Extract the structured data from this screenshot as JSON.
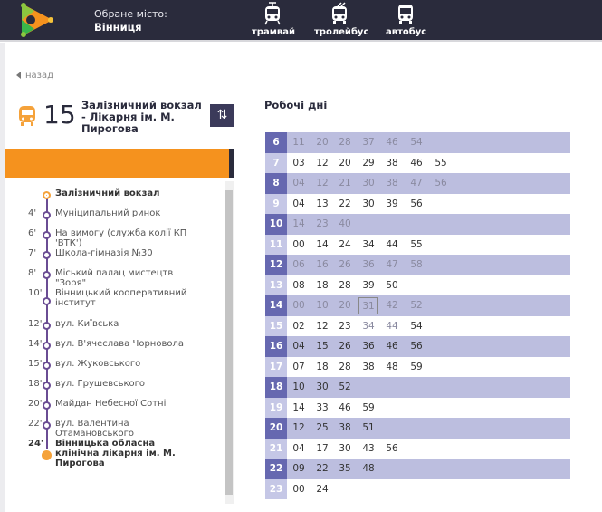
{
  "header": {
    "city_label": "Обране місто:",
    "city": "Вінниця",
    "modes": [
      {
        "label": "трамвай",
        "icon": "tram-icon"
      },
      {
        "label": "тролейбус",
        "icon": "trolleybus-icon"
      },
      {
        "label": "автобус",
        "icon": "bus-icon"
      }
    ],
    "colors": {
      "background": "#2a2b3c",
      "accent": "#f5921e",
      "purple": "#6668b0"
    }
  },
  "route": {
    "back_label": "назад",
    "number": "15",
    "name": "Залізничний вокзал - Лікарня ім. М. Пирогова",
    "type_icon": "bus-icon",
    "swap_icon": "swap-direction-icon"
  },
  "stops": [
    {
      "time": "",
      "name": "Залізничний вокзал",
      "kind": "start"
    },
    {
      "time": "4'",
      "name": "Муніципальний ринок"
    },
    {
      "time": "6'",
      "name": "На вимогу (служба колії КП 'ВТК')"
    },
    {
      "time": "7'",
      "name": "Школа-гімназія №30"
    },
    {
      "time": "8'",
      "name": "Міський палац мистецтв \"Зоря\""
    },
    {
      "time": "10'",
      "name": "Вінницький кооперативний інститут"
    },
    {
      "time": "12'",
      "name": "вул. Київська"
    },
    {
      "time": "14'",
      "name": "вул. В'ячеслава Чорновола"
    },
    {
      "time": "15'",
      "name": "вул. Жуковського"
    },
    {
      "time": "18'",
      "name": "вул. Грушевського"
    },
    {
      "time": "20'",
      "name": "Майдан Небесної Сотні"
    },
    {
      "time": "22'",
      "name": "вул. Валентина Отамановського"
    },
    {
      "time": "24'",
      "name": "Вінницька обласна клінічна лікарня ім. М. Пирогова",
      "kind": "end"
    }
  ],
  "timetable": {
    "title": "Робочі дні",
    "rows": [
      {
        "hour": "6",
        "minutes": [
          "11",
          "20",
          "28",
          "37",
          "46",
          "54"
        ],
        "muted": [
          0,
          1,
          2,
          3,
          4,
          5
        ]
      },
      {
        "hour": "7",
        "minutes": [
          "03",
          "12",
          "20",
          "29",
          "38",
          "46",
          "55"
        ],
        "muted": []
      },
      {
        "hour": "8",
        "minutes": [
          "04",
          "12",
          "21",
          "30",
          "38",
          "47",
          "56"
        ],
        "muted": [
          0,
          1,
          2,
          3,
          4,
          5,
          6
        ]
      },
      {
        "hour": "9",
        "minutes": [
          "04",
          "13",
          "22",
          "30",
          "39",
          "56"
        ],
        "muted": []
      },
      {
        "hour": "10",
        "minutes": [
          "14",
          "23",
          "40"
        ],
        "muted": [
          0,
          1,
          2
        ]
      },
      {
        "hour": "11",
        "minutes": [
          "00",
          "14",
          "24",
          "34",
          "44",
          "55"
        ],
        "muted": []
      },
      {
        "hour": "12",
        "minutes": [
          "06",
          "16",
          "26",
          "36",
          "47",
          "58"
        ],
        "muted": [
          0,
          1,
          2,
          3,
          4,
          5
        ]
      },
      {
        "hour": "13",
        "minutes": [
          "08",
          "18",
          "28",
          "39",
          "50"
        ],
        "muted": []
      },
      {
        "hour": "14",
        "minutes": [
          "00",
          "10",
          "20",
          "31",
          "42",
          "52"
        ],
        "muted": [
          0,
          1,
          2,
          3,
          4,
          5
        ],
        "current": 3
      },
      {
        "hour": "15",
        "minutes": [
          "02",
          "12",
          "23",
          "34",
          "44",
          "54"
        ],
        "muted": [
          3,
          4
        ]
      },
      {
        "hour": "16",
        "minutes": [
          "04",
          "15",
          "26",
          "36",
          "46",
          "56"
        ],
        "muted": []
      },
      {
        "hour": "17",
        "minutes": [
          "07",
          "18",
          "28",
          "38",
          "48",
          "59"
        ],
        "muted": []
      },
      {
        "hour": "18",
        "minutes": [
          "10",
          "30",
          "52"
        ],
        "muted": []
      },
      {
        "hour": "19",
        "minutes": [
          "14",
          "33",
          "46",
          "59"
        ],
        "muted": []
      },
      {
        "hour": "20",
        "minutes": [
          "12",
          "25",
          "38",
          "51"
        ],
        "muted": []
      },
      {
        "hour": "21",
        "minutes": [
          "04",
          "17",
          "30",
          "43",
          "56"
        ],
        "muted": []
      },
      {
        "hour": "22",
        "minutes": [
          "09",
          "22",
          "35",
          "48"
        ],
        "muted": []
      },
      {
        "hour": "23",
        "minutes": [
          "00",
          "24"
        ],
        "muted": []
      }
    ]
  }
}
